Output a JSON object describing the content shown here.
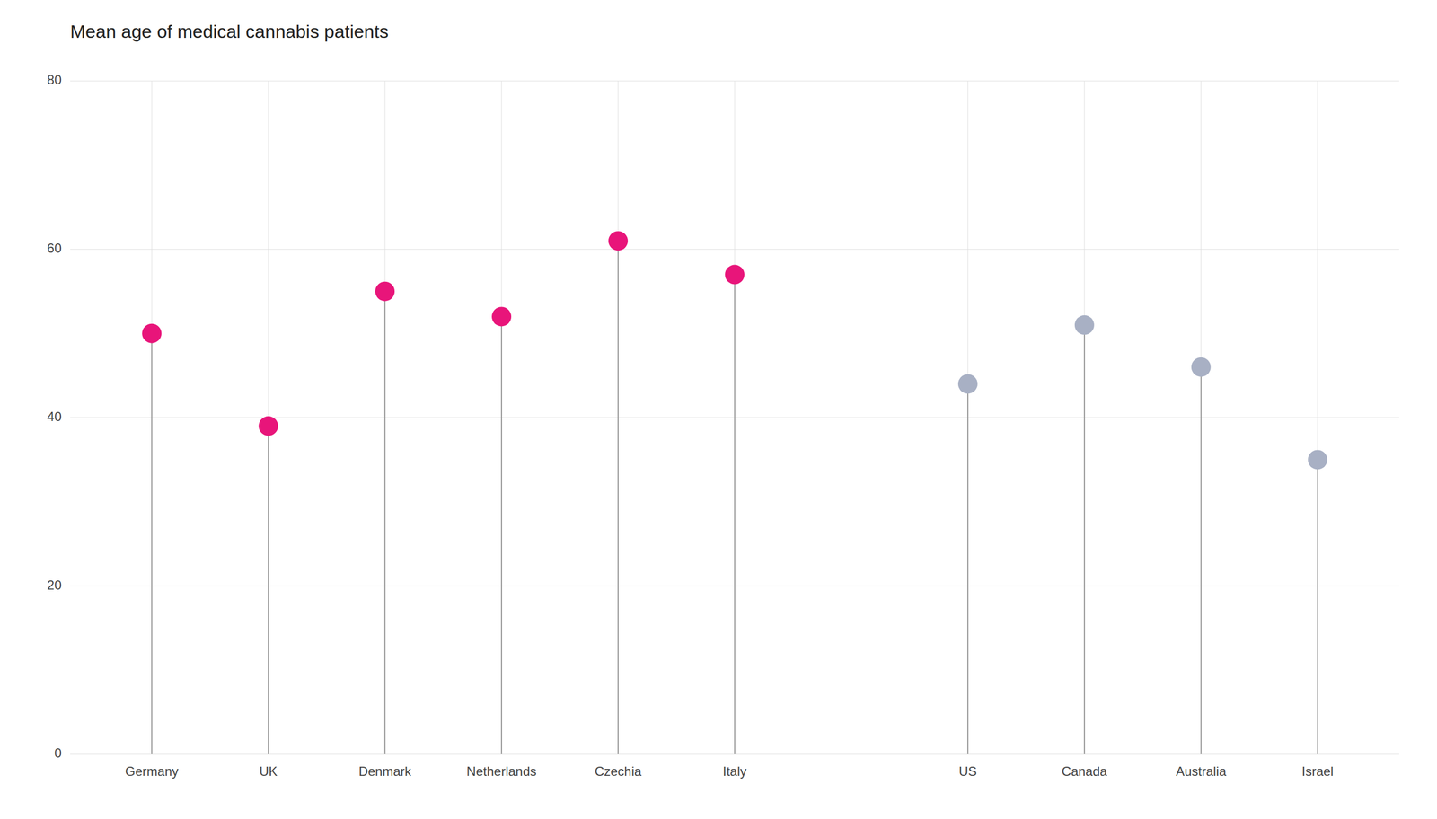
{
  "chart_data": {
    "type": "lollipop",
    "title": "Mean age of medical cannabis patients",
    "categories": [
      "Germany",
      "UK",
      "Denmark",
      "Netherlands",
      "Czechia",
      "Italy",
      null,
      "US",
      "Canada",
      "Australia",
      "Israel"
    ],
    "values": [
      50,
      39,
      55,
      52,
      61,
      57,
      null,
      44,
      51,
      46,
      35
    ],
    "colors": [
      "#e8157a",
      "#e8157a",
      "#e8157a",
      "#e8157a",
      "#e8157a",
      "#e8157a",
      null,
      "#a8b0c4",
      "#a8b0c4",
      "#a8b0c4",
      "#a8b0c4"
    ],
    "ylim": [
      0,
      80
    ],
    "yticks": [
      0,
      20,
      40,
      60,
      80
    ],
    "grid": true
  }
}
